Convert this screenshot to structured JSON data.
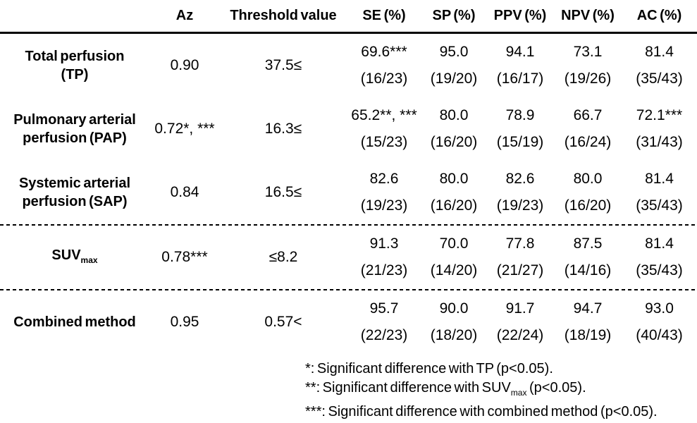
{
  "colors": {
    "text": "#000000",
    "background": "#ffffff",
    "rule": "#000000"
  },
  "table": {
    "headers": {
      "row_label": "",
      "az": "Az",
      "threshold": "Threshold value",
      "se": "SE (%)",
      "sp": "SP (%)",
      "ppv": "PPV (%)",
      "npv": "NPV (%)",
      "ac": "AC (%)"
    },
    "rows": [
      {
        "label_line1": "Total perfusion",
        "label_line2": "(TP)",
        "az": "0.90",
        "threshold": "37.5≤",
        "metrics": [
          {
            "pct": "69.6***",
            "frac": "(16/23)"
          },
          {
            "pct": "95.0",
            "frac": "(19/20)"
          },
          {
            "pct": "94.1",
            "frac": "(16/17)"
          },
          {
            "pct": "73.1",
            "frac": "(19/26)"
          },
          {
            "pct": "81.4",
            "frac": "(35/43)"
          }
        ]
      },
      {
        "label_line1": "Pulmonary arterial",
        "label_line2": "perfusion (PAP)",
        "az": "0.72*, ***",
        "threshold": "16.3≤",
        "metrics": [
          {
            "pct": "65.2**, ***",
            "frac": "(15/23)"
          },
          {
            "pct": "80.0",
            "frac": "(16/20)"
          },
          {
            "pct": "78.9",
            "frac": "(15/19)"
          },
          {
            "pct": "66.7",
            "frac": "(16/24)"
          },
          {
            "pct": "72.1***",
            "frac": "(31/43)"
          }
        ]
      },
      {
        "label_line1": "Systemic arterial",
        "label_line2": "perfusion (SAP)",
        "az": "0.84",
        "threshold": "16.5≤",
        "metrics": [
          {
            "pct": "82.6",
            "frac": "(19/23)"
          },
          {
            "pct": "80.0",
            "frac": "(16/20)"
          },
          {
            "pct": "82.6",
            "frac": "(19/23)"
          },
          {
            "pct": "80.0",
            "frac": "(16/20)"
          },
          {
            "pct": "81.4",
            "frac": "(35/43)"
          }
        ]
      },
      {
        "label_main": "SUV",
        "label_sub": "max",
        "az": "0.78***",
        "threshold": "≤8.2",
        "metrics": [
          {
            "pct": "91.3",
            "frac": "(21/23)"
          },
          {
            "pct": "70.0",
            "frac": "(14/20)"
          },
          {
            "pct": "77.8",
            "frac": "(21/27)"
          },
          {
            "pct": "87.5",
            "frac": "(14/16)"
          },
          {
            "pct": "81.4",
            "frac": "(35/43)"
          }
        ]
      },
      {
        "label_line1": "Combined method",
        "az": "0.95",
        "threshold": "0.57<",
        "metrics": [
          {
            "pct": "95.7",
            "frac": "(22/23)"
          },
          {
            "pct": "90.0",
            "frac": "(18/20)"
          },
          {
            "pct": "91.7",
            "frac": "(22/24)"
          },
          {
            "pct": "94.7",
            "frac": "(18/19)"
          },
          {
            "pct": "93.0",
            "frac": "(40/43)"
          }
        ]
      }
    ]
  },
  "footnotes": {
    "line1": "*: Significant difference with TP (p<0.05).",
    "line2_prefix": "**: Significant difference with SUV",
    "line2_sub": "max",
    "line2_suffix": " (p<0.05).",
    "line3": "***: Significant difference with combined method (p<0.05)."
  }
}
